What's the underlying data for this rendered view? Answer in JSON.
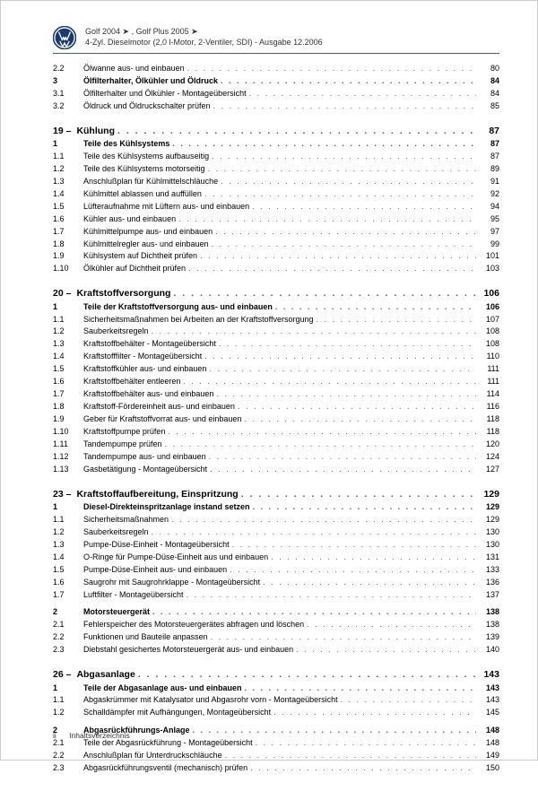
{
  "header": {
    "line1": "Golf 2004 ➤ , Golf Plus 2005 ➤",
    "line2": "4-Zyl. Dieselmotor (2,0 l-Motor, 2-Ventiler, SDI) - Ausgabe 12.2006"
  },
  "preEntries": [
    {
      "num": "2.2",
      "title": "Ölwanne aus- und einbauen",
      "page": "80",
      "bold": false
    },
    {
      "num": "3",
      "title": "Ölfilterhalter, Ölkühler und Öldruck",
      "page": "84",
      "bold": true
    },
    {
      "num": "3.1",
      "title": "Ölfilterhalter und Ölkühler - Montageübersicht",
      "page": "84",
      "bold": false
    },
    {
      "num": "3.2",
      "title": "Öldruck und Öldruckschalter prüfen",
      "page": "85",
      "bold": false
    }
  ],
  "chapters": [
    {
      "num": "19 –",
      "title": "Kühlung",
      "page": "87",
      "entries": [
        {
          "num": "1",
          "title": "Teile des Kühlsystems",
          "page": "87",
          "bold": true
        },
        {
          "num": "1.1",
          "title": "Teile des Kühlsystems aufbauseitig",
          "page": "87",
          "bold": false
        },
        {
          "num": "1.2",
          "title": "Teile des Kühlsystems motorseitig",
          "page": "89",
          "bold": false
        },
        {
          "num": "1.3",
          "title": "Anschlußplan für Kühlmittelschläuche",
          "page": "91",
          "bold": false
        },
        {
          "num": "1.4",
          "title": "Kühlmittel ablassen und auffüllen",
          "page": "92",
          "bold": false
        },
        {
          "num": "1.5",
          "title": "Lüfteraufnahme mit Lüftern aus- und einbauen",
          "page": "94",
          "bold": false
        },
        {
          "num": "1.6",
          "title": "Kühler aus- und einbauen",
          "page": "95",
          "bold": false
        },
        {
          "num": "1.7",
          "title": "Kühlmittelpumpe aus- und einbauen",
          "page": "97",
          "bold": false
        },
        {
          "num": "1.8",
          "title": "Kühlmittelregler aus- und einbauen",
          "page": "99",
          "bold": false
        },
        {
          "num": "1.9",
          "title": "Kühlsystem auf Dichtheit prüfen",
          "page": "101",
          "bold": false
        },
        {
          "num": "1.10",
          "title": "Ölkühler auf Dichtheit prüfen",
          "page": "103",
          "bold": false
        }
      ]
    },
    {
      "num": "20 –",
      "title": "Kraftstoffversorgung",
      "page": "106",
      "entries": [
        {
          "num": "1",
          "title": "Teile der Kraftstoffversorgung aus- und einbauen",
          "page": "106",
          "bold": true
        },
        {
          "num": "1.1",
          "title": "Sicherheitsmaßnahmen bei Arbeiten an der Kraftstoffversorgung",
          "page": "107",
          "bold": false
        },
        {
          "num": "1.2",
          "title": "Sauberkeitsregeln",
          "page": "108",
          "bold": false
        },
        {
          "num": "1.3",
          "title": "Kraftstoffbehälter - Montageübersicht",
          "page": "108",
          "bold": false
        },
        {
          "num": "1.4",
          "title": "Kraftstofffilter - Montageübersicht",
          "page": "110",
          "bold": false
        },
        {
          "num": "1.5",
          "title": "Kraftstoffkühler aus- und einbauen",
          "page": "111",
          "bold": false
        },
        {
          "num": "1.6",
          "title": "Kraftstoffbehälter entleeren",
          "page": "111",
          "bold": false
        },
        {
          "num": "1.7",
          "title": "Kraftstoffbehälter aus- und einbauen",
          "page": "114",
          "bold": false
        },
        {
          "num": "1.8",
          "title": "Kraftstoff-Fördereinheit aus- und einbauen",
          "page": "116",
          "bold": false
        },
        {
          "num": "1.9",
          "title": "Geber für Kraftstoffvorrat aus- und einbauen",
          "page": "118",
          "bold": false
        },
        {
          "num": "1.10",
          "title": "Kraftstoffpumpe prüfen",
          "page": "118",
          "bold": false
        },
        {
          "num": "1.11",
          "title": "Tandempumpe prüfen",
          "page": "120",
          "bold": false
        },
        {
          "num": "1.12",
          "title": "Tandempumpe aus- und einbauen",
          "page": "124",
          "bold": false
        },
        {
          "num": "1.13",
          "title": "Gasbetätigung - Montageübersicht",
          "page": "127",
          "bold": false
        }
      ]
    },
    {
      "num": "23 –",
      "title": "Kraftstoffaufbereitung, Einspritzung",
      "page": "129",
      "entries": [
        {
          "num": "1",
          "title": "Diesel-Direkteinspritzanlage instand setzen",
          "page": "129",
          "bold": true
        },
        {
          "num": "1.1",
          "title": "Sicherheitsmaßnahmen",
          "page": "129",
          "bold": false
        },
        {
          "num": "1.2",
          "title": "Sauberkeitsregeln",
          "page": "130",
          "bold": false
        },
        {
          "num": "1.3",
          "title": "Pumpe-Düse-Einheit - Montageübersicht",
          "page": "130",
          "bold": false
        },
        {
          "num": "1.4",
          "title": "O-Ringe für Pumpe-Düse-Einheit aus und einbauen",
          "page": "131",
          "bold": false
        },
        {
          "num": "1.5",
          "title": "Pumpe-Düse-Einheit aus- und einbauen",
          "page": "133",
          "bold": false
        },
        {
          "num": "1.6",
          "title": "Saugrohr mit Saugrohrklappe - Montageübersicht",
          "page": "136",
          "bold": false
        },
        {
          "num": "1.7",
          "title": "Luftfilter - Montageübersicht",
          "page": "137",
          "bold": false
        },
        {
          "num": "2",
          "title": "Motorsteuergerät",
          "page": "138",
          "bold": true,
          "gap": true
        },
        {
          "num": "2.1",
          "title": "Fehlerspeicher des Motorsteuergerätes abfragen und löschen",
          "page": "138",
          "bold": false
        },
        {
          "num": "2.2",
          "title": "Funktionen und Bauteile anpassen",
          "page": "139",
          "bold": false
        },
        {
          "num": "2.3",
          "title": "Diebstahl gesichertes Motorsteuergerät aus- und einbauen",
          "page": "140",
          "bold": false
        }
      ]
    },
    {
      "num": "26 –",
      "title": "Abgasanlage",
      "page": "143",
      "entries": [
        {
          "num": "1",
          "title": "Teile der Abgasanlage aus- und einbauen",
          "page": "143",
          "bold": true
        },
        {
          "num": "1.1",
          "title": "Abgaskrümmer mit Katalysator und Abgasrohr vorn - Montageübersicht",
          "page": "143",
          "bold": false
        },
        {
          "num": "1.2",
          "title": "Schalldämpfer mit Aufhängungen, Montageübersicht",
          "page": "145",
          "bold": false
        },
        {
          "num": "2",
          "title": "Abgasrückführungs-Anlage",
          "page": "148",
          "bold": true,
          "gap": true
        },
        {
          "num": "2.1",
          "title": "Teile der Abgasrückführung - Montageübersicht",
          "page": "148",
          "bold": false
        },
        {
          "num": "2.2",
          "title": "Anschlußplan für Unterdruckschläuche",
          "page": "149",
          "bold": false
        },
        {
          "num": "2.3",
          "title": "Abgasrückführungsventil (mechanisch) prüfen",
          "page": "150",
          "bold": false
        }
      ]
    }
  ],
  "footer": {
    "page": "ii",
    "label": "Inhaltsverzeichnis"
  },
  "dots": ". . . . . . . . . . . . . . . . . . . . . . . . . . . . . . . . . . . . . . . . . . . . . . . . . . . . . . . . . . . . . . . . . . . . . . . . . . . . . . . . . . . . . . . . . . . . . . . . . . . ."
}
